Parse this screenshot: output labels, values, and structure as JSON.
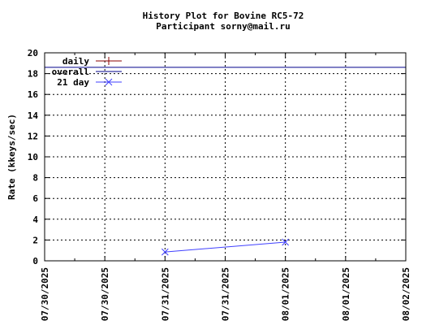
{
  "chart_data": {
    "type": "line",
    "title": "History Plot for Bovine RC5-72",
    "subtitle": "Participant sorny@mail.ru",
    "xlabel": "",
    "ylabel": "Rate (kkeys/sec)",
    "x_tick_labels": [
      "07/30/2025",
      "07/30/2025",
      "07/31/2025",
      "07/31/2025",
      "08/01/2025",
      "08/01/2025",
      "08/02/2025"
    ],
    "x_ticks": [
      "2025-07-30 00:00",
      "2025-07-30 12:00",
      "2025-07-31 00:00",
      "2025-07-31 12:00",
      "2025-08-01 00:00",
      "2025-08-01 12:00",
      "2025-08-02 00:00"
    ],
    "xlim": [
      "2025-07-30 00:00",
      "2025-08-02 00:00"
    ],
    "ylim": [
      0,
      20
    ],
    "y_ticks": [
      0,
      2,
      4,
      6,
      8,
      10,
      12,
      14,
      16,
      18,
      20
    ],
    "grid": true,
    "legend_position": "top-left",
    "series": [
      {
        "name": "daily",
        "color": "#8b0000",
        "marker": "plus",
        "points": []
      },
      {
        "name": "overall",
        "color": "#00008b",
        "marker": "none",
        "style": "horizontal-line",
        "value": 18.6
      },
      {
        "name": "21 day",
        "color": "#4040ff",
        "marker": "x",
        "points": [
          {
            "x": "2025-07-31 00:00",
            "y": 0.85
          },
          {
            "x": "2025-08-01 00:00",
            "y": 1.8
          }
        ]
      }
    ]
  }
}
